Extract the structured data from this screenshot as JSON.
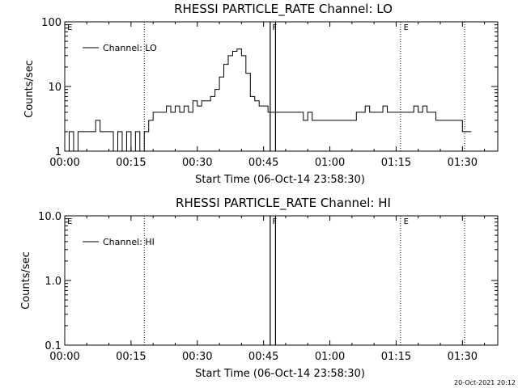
{
  "footer": {
    "timestamp": "20-Oct-2021 20:12"
  },
  "chart_data": [
    {
      "type": "line",
      "title": "RHESSI PARTICLE_RATE Channel: LO",
      "xlabel": "Start Time (06-Oct-14 23:58:30)",
      "ylabel": "Counts/sec",
      "yscale": "log",
      "xlim_min": [
        0,
        98
      ],
      "ylim": [
        1,
        100
      ],
      "x_ticks": [
        "00:00",
        "00:15",
        "00:30",
        "00:45",
        "01:00",
        "01:15",
        "01:30"
      ],
      "y_ticks": [
        {
          "value": 1,
          "label": "1"
        },
        {
          "value": 10,
          "label": "10"
        },
        {
          "value": 100,
          "label": "100"
        }
      ],
      "legend": {
        "placement": "top-left",
        "entries": [
          "Channel: LO"
        ]
      },
      "dotted_lines_min": [
        18,
        76,
        90.5
      ],
      "solid_lines_min": [
        46.5,
        47.7
      ],
      "markers": [
        {
          "x": 0.4,
          "label": "E"
        },
        {
          "x": 46.8,
          "label": "F"
        },
        {
          "x": 76.5,
          "label": "E"
        }
      ],
      "series": [
        {
          "x": [
            0,
            1,
            2,
            3,
            4,
            5,
            6,
            7,
            8,
            9,
            10,
            11,
            12,
            13,
            14,
            15,
            16,
            17,
            18,
            19,
            20,
            21,
            22,
            23,
            24,
            25,
            26,
            27,
            28,
            29,
            30,
            31,
            32,
            33,
            34,
            35,
            36,
            37,
            38,
            39,
            40,
            41,
            42,
            43,
            44,
            45,
            46,
            47,
            48,
            49,
            50,
            51,
            52,
            53,
            54,
            55,
            56,
            57,
            58,
            59,
            60,
            61,
            62,
            63,
            64,
            65,
            66,
            67,
            68,
            69,
            70,
            71,
            72,
            73,
            74,
            75,
            76,
            77,
            78,
            79,
            80,
            81,
            82,
            83,
            84,
            85,
            86,
            87,
            88,
            89,
            90,
            91
          ],
          "y": [
            1,
            2,
            1,
            2,
            2,
            2,
            2,
            3,
            2,
            2,
            2,
            1,
            2,
            1,
            2,
            1,
            2,
            1,
            2,
            3,
            4,
            4,
            4,
            5,
            4,
            5,
            4,
            5,
            4,
            6,
            5,
            6,
            6,
            7,
            9,
            14,
            22,
            30,
            35,
            38,
            30,
            16,
            7,
            6,
            5,
            5,
            4,
            4,
            4,
            4,
            4,
            4,
            4,
            4,
            3,
            4,
            3,
            3,
            3,
            3,
            3,
            3,
            3,
            3,
            3,
            3,
            4,
            4,
            5,
            4,
            4,
            4,
            5,
            4,
            4,
            4,
            4,
            4,
            4,
            5,
            4,
            5,
            4,
            4,
            3,
            3,
            3,
            3,
            3,
            3,
            2,
            2
          ]
        }
      ]
    },
    {
      "type": "line",
      "title": "RHESSI PARTICLE_RATE Channel: HI",
      "xlabel": "Start Time (06-Oct-14 23:58:30)",
      "ylabel": "Counts/sec",
      "yscale": "log",
      "xlim_min": [
        0,
        98
      ],
      "ylim": [
        0.1,
        10
      ],
      "x_ticks": [
        "00:00",
        "00:15",
        "00:30",
        "00:45",
        "01:00",
        "01:15",
        "01:30"
      ],
      "y_ticks": [
        {
          "value": 0.1,
          "label": "0.1"
        },
        {
          "value": 1,
          "label": "1.0"
        },
        {
          "value": 10,
          "label": "10.0"
        }
      ],
      "legend": {
        "placement": "top-left",
        "entries": [
          "Channel: HI"
        ]
      },
      "dotted_lines_min": [
        18,
        76,
        90.5
      ],
      "solid_lines_min": [
        46.5,
        47.7
      ],
      "markers": [
        {
          "x": 0.4,
          "label": "E"
        },
        {
          "x": 46.8,
          "label": "F"
        },
        {
          "x": 76.5,
          "label": "E"
        }
      ],
      "series": [
        {
          "x": [],
          "y": []
        }
      ]
    }
  ]
}
